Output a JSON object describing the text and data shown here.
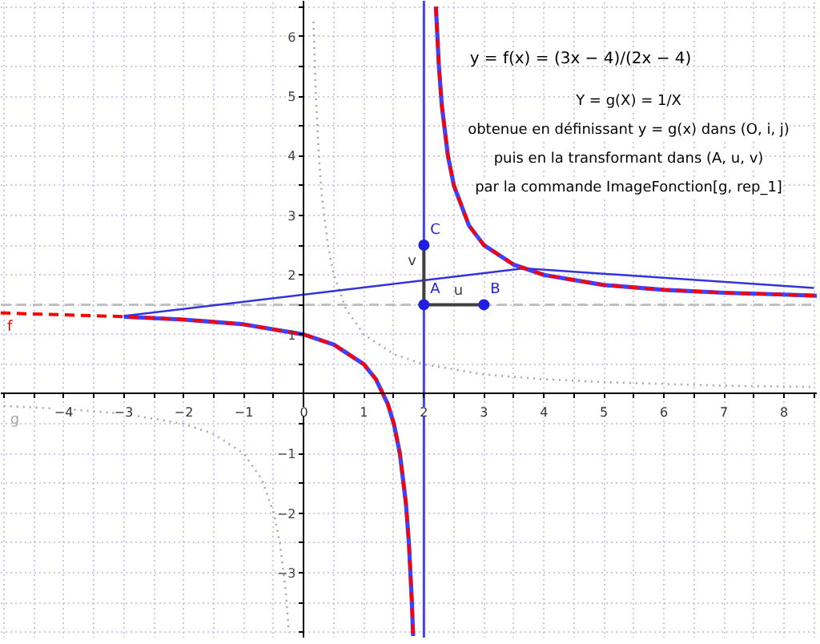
{
  "chart_data": {
    "type": "line",
    "annotations": [
      "y = f(x) = (3x − 4)/(2x − 4)",
      "Y = g(X) = 1/X",
      "obtenue en définissant y = g(x) dans (O, i, j)",
      "puis en la transformant dans (A, u, v)",
      "par la commande ImageFonction[g, rep_1]"
    ],
    "xlim": [
      -5.05,
      8.56
    ],
    "ylim": [
      -4.1,
      6.6
    ],
    "xticks": [
      {
        "value": -5,
        "label": null
      },
      {
        "value": -4.5,
        "label": null
      },
      -4,
      {
        "value": -3.5,
        "label": null
      },
      -3,
      {
        "value": -2.5,
        "label": null
      },
      -2,
      {
        "value": -1.5,
        "label": null
      },
      -1,
      {
        "value": -0.5,
        "label": null
      },
      0,
      {
        "value": 0.5,
        "label": null
      },
      1,
      {
        "value": 1.5,
        "label": null
      },
      2,
      {
        "value": 2.5,
        "label": null
      },
      3,
      {
        "value": 3.5,
        "label": null
      },
      4,
      {
        "value": 4.5,
        "label": null
      },
      5,
      {
        "value": 5.5,
        "label": null
      },
      6,
      {
        "value": 6.5,
        "label": null
      },
      7,
      {
        "value": 7.5,
        "label": null
      },
      8,
      {
        "value": 8.5,
        "label": null
      }
    ],
    "yticks": [
      {
        "value": -4,
        "label": null
      },
      {
        "value": -3.5,
        "label": null
      },
      -3,
      {
        "value": -2.5,
        "label": null
      },
      -2,
      {
        "value": -1.5,
        "label": null
      },
      -1,
      {
        "value": -0.5,
        "label": null
      },
      {
        "value": 0,
        "label": null
      },
      {
        "value": 0.5,
        "label": null
      },
      1,
      {
        "value": 1.5,
        "label": null
      },
      2,
      {
        "value": 2.5,
        "label": null
      },
      3,
      {
        "value": 3.5,
        "label": null
      },
      4,
      {
        "value": 4.5,
        "label": null
      },
      5,
      {
        "value": 5.5,
        "label": null
      },
      6,
      {
        "value": 6.5,
        "label": null
      }
    ],
    "grid": true,
    "ref_lines": [
      {
        "axis": "x",
        "value": 2,
        "color": "#4040ff",
        "line_style": "solid"
      },
      {
        "axis": "y",
        "value": 1.5,
        "color": "#c0c0c0",
        "line_style": "dashed"
      }
    ],
    "series": [
      {
        "name": "g",
        "color": "#a8a8a8",
        "line_style": "dotted",
        "marker": "none",
        "x": [
          -5,
          -4,
          -3,
          -2,
          -1.5,
          -1,
          -0.7,
          -0.5,
          -0.4,
          -0.3,
          -0.25,
          null,
          0.16,
          0.2,
          0.25,
          0.3,
          0.4,
          0.5,
          0.7,
          1,
          1.5,
          2,
          3,
          4,
          5,
          6,
          7,
          8.5
        ],
        "values": [
          -0.2,
          -0.25,
          -0.33,
          -0.5,
          -0.67,
          -1,
          -1.43,
          -2,
          -2.5,
          -3.33,
          -4,
          null,
          6.25,
          5,
          4,
          3.33,
          2.5,
          2,
          1.43,
          1,
          0.67,
          0.5,
          0.33,
          0.25,
          0.2,
          0.17,
          0.14,
          0.12
        ]
      },
      {
        "color": "#4040ff",
        "line_style": "solid",
        "marker": "none",
        "x": [
          -3,
          -2,
          -1,
          0,
          0.5,
          1,
          1.2,
          1.4,
          1.5,
          1.6,
          1.7,
          1.75,
          1.8,
          1.82,
          null,
          2.2,
          2.25,
          2.3,
          2.4,
          2.5,
          2.75,
          3,
          3.5,
          4,
          5,
          6,
          7,
          8,
          8.55
        ],
        "values": [
          1.3,
          1.25,
          1.17,
          1,
          0.83,
          0.5,
          0.25,
          -0.17,
          -0.5,
          -1,
          -1.83,
          -2.5,
          -3.5,
          -4.06,
          null,
          6.5,
          5.5,
          4.83,
          4,
          3.5,
          2.83,
          2.5,
          2.17,
          2,
          1.83,
          1.75,
          1.7,
          1.67,
          1.65
        ]
      },
      {
        "color": "#3333dd",
        "line_style": "solid",
        "marker": "none",
        "x": [
          -3,
          3.67,
          8.5
        ],
        "values": [
          1.31,
          2.11,
          1.78
        ]
      },
      {
        "name": "f",
        "color": "#ff0000",
        "line_style": "dashed",
        "marker": "none",
        "x": [
          -5.05,
          -5,
          -4,
          -3,
          -2,
          -1,
          0,
          0.5,
          1,
          1.2,
          1.4,
          1.5,
          1.6,
          1.7,
          1.75,
          1.8,
          1.82,
          null,
          2.2,
          2.25,
          2.3,
          2.4,
          2.5,
          2.75,
          3,
          3.5,
          4,
          5,
          6,
          7,
          8,
          8.55
        ],
        "values": [
          1.36,
          1.36,
          1.33,
          1.3,
          1.25,
          1.17,
          1,
          0.83,
          0.5,
          0.25,
          -0.17,
          -0.5,
          -1,
          -1.83,
          -2.5,
          -3.5,
          -4.06,
          null,
          6.5,
          5.5,
          4.83,
          4,
          3.5,
          2.83,
          2.5,
          2.17,
          2,
          1.83,
          1.75,
          1.7,
          1.67,
          1.65
        ]
      },
      {
        "name": "u",
        "color": "#404040",
        "line_style": "solid",
        "marker": "none",
        "x": [
          2,
          3
        ],
        "values": [
          1.5,
          1.5
        ]
      },
      {
        "name": "v",
        "color": "#404040",
        "line_style": "solid",
        "marker": "none",
        "x": [
          2,
          2
        ],
        "values": [
          1.5,
          2.5
        ]
      },
      {
        "name": "A",
        "type": "scatter",
        "color": "#2020e0",
        "marker": "circle",
        "x": [
          2
        ],
        "values": [
          1.5
        ]
      },
      {
        "name": "B",
        "type": "scatter",
        "color": "#2020e0",
        "marker": "circle",
        "x": [
          3
        ],
        "values": [
          1.5
        ]
      },
      {
        "name": "C",
        "type": "scatter",
        "color": "#2020e0",
        "marker": "circle",
        "x": [
          2
        ],
        "values": [
          2.5
        ]
      }
    ]
  }
}
